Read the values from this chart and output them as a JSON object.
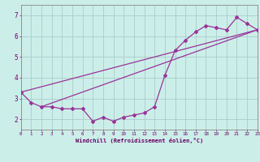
{
  "xlabel": "Windchill (Refroidissement éolien,°C)",
  "bg_color": "#cceee8",
  "grid_color": "#aacccc",
  "line_color": "#993399",
  "hours": [
    0,
    1,
    2,
    3,
    4,
    5,
    6,
    7,
    8,
    9,
    10,
    11,
    12,
    13,
    14,
    15,
    16,
    17,
    18,
    19,
    20,
    21,
    22,
    23
  ],
  "values": [
    3.3,
    2.8,
    2.6,
    2.6,
    2.5,
    2.5,
    2.5,
    1.9,
    2.1,
    1.9,
    2.1,
    2.2,
    2.3,
    2.6,
    4.1,
    5.3,
    5.8,
    6.2,
    6.5,
    6.4,
    6.3,
    6.9,
    6.6,
    6.3
  ],
  "ylim": [
    1.5,
    7.5
  ],
  "xlim": [
    0,
    23
  ],
  "yticks": [
    2,
    3,
    4,
    5,
    6,
    7
  ],
  "line1_x": [
    0,
    23
  ],
  "line1_y": [
    3.3,
    6.3
  ],
  "line2_x": [
    2,
    23
  ],
  "line2_y": [
    2.6,
    6.3
  ]
}
